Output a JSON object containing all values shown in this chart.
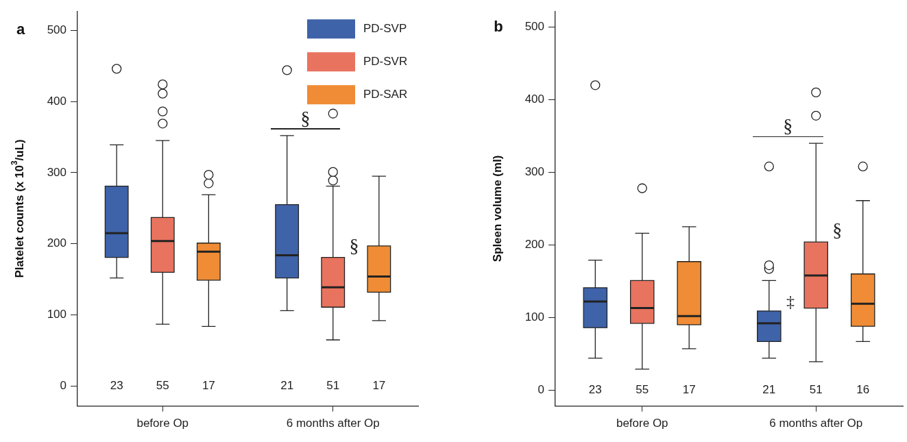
{
  "chart_data": [
    {
      "type": "box",
      "title": "a",
      "ylabel": "Platelet counts (x 10$^{3}$/uL)",
      "categories": [
        "before Op",
        "6 months after Op"
      ],
      "ylim": [
        -28,
        527
      ],
      "yticks": [
        0,
        100,
        200,
        300,
        400,
        500
      ],
      "legend": "top right",
      "annotations": [
        "§",
        "§"
      ],
      "series": [
        {
          "name": "PD-SVP",
          "color": "#3f63a9",
          "value_labels": [
            "23",
            "21"
          ],
          "boxes": [
            {
              "low": 152,
              "q1": 181,
              "median": 215,
              "q3": 281,
              "high": 339,
              "outliers": [
                446
              ]
            },
            {
              "low": 106,
              "q1": 152,
              "median": 184,
              "q3": 255,
              "high": 352,
              "outliers": [
                444
              ]
            }
          ]
        },
        {
          "name": "PD-SVR",
          "color": "#e8735f",
          "value_labels": [
            "55",
            "51"
          ],
          "boxes": [
            {
              "low": 87,
              "q1": 160,
              "median": 204,
              "q3": 237,
              "high": 345,
              "outliers": [
                369,
                386,
                411,
                424
              ]
            },
            {
              "low": 65,
              "q1": 111,
              "median": 139,
              "q3": 181,
              "high": 281,
              "outliers": [
                289,
                301,
                383
              ]
            }
          ]
        },
        {
          "name": "PD-SAR",
          "color": "#ef8c35",
          "value_labels": [
            "17",
            "17"
          ],
          "boxes": [
            {
              "low": 84,
              "q1": 149,
              "median": 189,
              "q3": 201,
              "high": 269,
              "outliers": [
                285,
                297
              ]
            },
            {
              "low": 92,
              "q1": 132,
              "median": 154,
              "q3": 197,
              "high": 295
            }
          ]
        }
      ]
    },
    {
      "type": "box",
      "title": "b",
      "ylabel": "Spleen volume (ml)",
      "categories": [
        "before Op",
        "6 months after Op"
      ],
      "ylim": [
        -22,
        522
      ],
      "yticks": [
        0,
        100,
        200,
        300,
        400,
        500
      ],
      "annotations": [
        "§",
        "§",
        "‡"
      ],
      "series": [
        {
          "color": "#3f63a9",
          "value_labels": [
            "23",
            "21"
          ],
          "boxes": [
            {
              "low": 44,
              "q1": 86,
              "median": 122,
              "q3": 141,
              "high": 179,
              "outliers": [
                420
              ]
            },
            {
              "low": 44,
              "q1": 67,
              "median": 92,
              "q3": 109,
              "high": 151,
              "outliers": [
                167,
                172,
                308
              ]
            }
          ]
        },
        {
          "color": "#e8735f",
          "value_labels": [
            "55",
            "51"
          ],
          "boxes": [
            {
              "low": 29,
              "q1": 92,
              "median": 113,
              "q3": 151,
              "high": 216,
              "outliers": [
                278
              ]
            },
            {
              "low": 39,
              "q1": 113,
              "median": 158,
              "q3": 204,
              "high": 340,
              "outliers": [
                378,
                410
              ]
            }
          ]
        },
        {
          "color": "#ef8c35",
          "value_labels": [
            "17",
            "16"
          ],
          "boxes": [
            {
              "low": 57,
              "q1": 90,
              "median": 102,
              "q3": 177,
              "high": 225
            },
            {
              "low": 67,
              "q1": 88,
              "median": 119,
              "q3": 160,
              "high": 261,
              "outliers": [
                308
              ]
            }
          ]
        }
      ]
    }
  ]
}
